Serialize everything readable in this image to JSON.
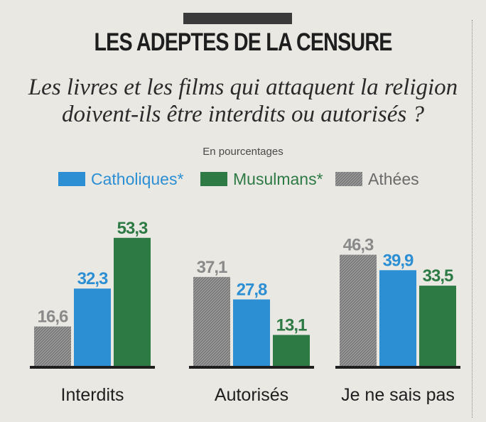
{
  "header": {
    "title": "LES ADEPTES DE LA CENSURE",
    "subtitle_line1": "Les livres et les films qui attaquent la religion",
    "subtitle_line2": "doivent-ils être interdits ou autorisés ?"
  },
  "chart_data": {
    "type": "bar",
    "note": "En pourcentages",
    "categories": [
      "Interdits",
      "Autorisés",
      "Je ne sais pas"
    ],
    "series": [
      {
        "name": "Catholiques*",
        "color": "#2c8fd4",
        "values": [
          "32,3",
          "27,8",
          "39,9"
        ]
      },
      {
        "name": "Musulmans*",
        "color": "#2d7a45",
        "values": [
          "53,3",
          "13,1",
          "33,5"
        ]
      },
      {
        "name": "Athées",
        "color": "#8e8e8e",
        "values": [
          "16,6",
          "37,1",
          "46,3"
        ]
      }
    ],
    "bar_order": {
      "Interdits": [
        "Athées",
        "Catholiques*",
        "Musulmans*"
      ],
      "Autorisés": [
        "Athées",
        "Catholiques*",
        "Musulmans*"
      ],
      "Je ne sais pas": [
        "Athées",
        "Catholiques*",
        "Musulmans*"
      ]
    },
    "ylim": [
      0,
      60
    ]
  }
}
